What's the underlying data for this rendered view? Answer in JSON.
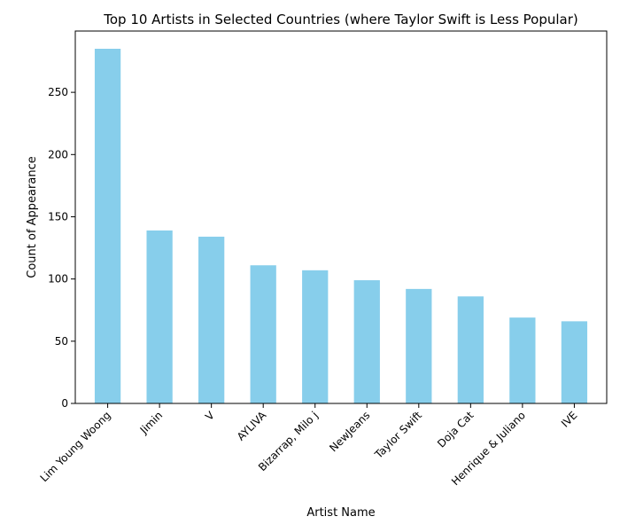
{
  "chart_data": {
    "type": "bar",
    "title": "Top 10 Artists in Selected Countries (where Taylor Swift is Less Popular)",
    "xlabel": "Artist Name",
    "ylabel": "Count of Appearance",
    "categories": [
      "Lim Young Woong",
      "Jimin",
      "V",
      "AYLIVA",
      "Bizarrap, Milo j",
      "NewJeans",
      "Taylor Swift",
      "Doja Cat",
      "Henrique & Juliano",
      "IVE"
    ],
    "values": [
      285,
      139,
      134,
      111,
      107,
      99,
      92,
      86,
      69,
      66
    ],
    "ylim": [
      0,
      299.25
    ],
    "yticks": [
      0,
      50,
      100,
      150,
      200,
      250
    ],
    "bar_color": "#87CEEB",
    "grid": false
  }
}
